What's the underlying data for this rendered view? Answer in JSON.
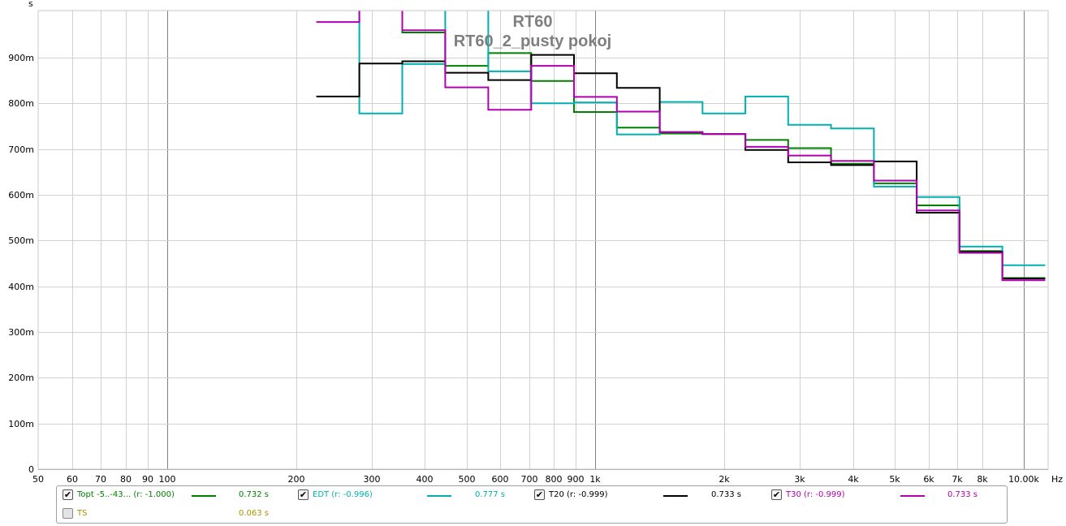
{
  "chart_data": {
    "type": "line",
    "title": "RT60",
    "subtitle": "RT60_2_pusty pokoj",
    "y_unit_label": "s",
    "x_unit_label": "Hz",
    "x_scale": "log",
    "xlim": [
      50,
      13000
    ],
    "ylim": [
      0,
      1.0
    ],
    "grid": true,
    "x_ticks": [
      {
        "v": 50,
        "label": "50"
      },
      {
        "v": 60,
        "label": "60"
      },
      {
        "v": 70,
        "label": "70"
      },
      {
        "v": 80,
        "label": "80"
      },
      {
        "v": 90,
        "label": "90"
      },
      {
        "v": 100,
        "label": "100"
      },
      {
        "v": 200,
        "label": "200"
      },
      {
        "v": 300,
        "label": "300"
      },
      {
        "v": 400,
        "label": "400"
      },
      {
        "v": 500,
        "label": "500"
      },
      {
        "v": 600,
        "label": "600"
      },
      {
        "v": 700,
        "label": "700"
      },
      {
        "v": 800,
        "label": "800"
      },
      {
        "v": 900,
        "label": "900"
      },
      {
        "v": 1000,
        "label": "1k"
      },
      {
        "v": 2000,
        "label": "2k"
      },
      {
        "v": 3000,
        "label": "3k"
      },
      {
        "v": 4000,
        "label": "4k"
      },
      {
        "v": 5000,
        "label": "5k"
      },
      {
        "v": 6000,
        "label": "6k"
      },
      {
        "v": 7000,
        "label": "7k"
      },
      {
        "v": 8000,
        "label": "8k"
      },
      {
        "v": 10000,
        "label": "10.00k"
      }
    ],
    "y_ticks": [
      {
        "v": 0,
        "label": "0"
      },
      {
        "v": 0.1,
        "label": "100m"
      },
      {
        "v": 0.2,
        "label": "200m"
      },
      {
        "v": 0.3,
        "label": "300m"
      },
      {
        "v": 0.4,
        "label": "400m"
      },
      {
        "v": 0.5,
        "label": "500m"
      },
      {
        "v": 0.6,
        "label": "600m"
      },
      {
        "v": 0.7,
        "label": "700m"
      },
      {
        "v": 0.8,
        "label": "800m"
      },
      {
        "v": 0.9,
        "label": "900m"
      }
    ],
    "band_edges": [
      223,
      281,
      354,
      446,
      562,
      708,
      891,
      1122,
      1413,
      1778,
      2239,
      2818,
      3548,
      4467,
      5623,
      7079,
      8913,
      11220
    ],
    "series": [
      {
        "name": "Topt",
        "color": "#008000",
        "values": [
          1.05,
          1.05,
          0.955,
          0.882,
          0.91,
          0.849,
          0.781,
          0.747,
          0.734,
          0.733,
          0.72,
          0.702,
          0.668,
          0.625,
          0.577,
          0.477,
          0.418
        ]
      },
      {
        "name": "EDT",
        "color": "#00b0b0",
        "values": [
          1.05,
          0.778,
          0.886,
          1.05,
          0.87,
          0.8,
          0.802,
          0.732,
          0.803,
          0.778,
          0.815,
          0.753,
          0.745,
          0.618,
          0.595,
          0.487,
          0.446
        ]
      },
      {
        "name": "T20",
        "color": "#000000",
        "values": [
          0.815,
          0.887,
          0.892,
          0.867,
          0.851,
          0.906,
          0.866,
          0.834,
          0.737,
          0.733,
          0.698,
          0.671,
          0.665,
          0.673,
          0.561,
          0.475,
          0.417
        ]
      },
      {
        "name": "T30",
        "color": "#b000b0",
        "values": [
          0.978,
          1.05,
          0.96,
          0.835,
          0.786,
          0.882,
          0.814,
          0.782,
          0.737,
          0.733,
          0.705,
          0.686,
          0.674,
          0.631,
          0.566,
          0.473,
          0.413
        ]
      }
    ]
  },
  "legend": {
    "items": [
      {
        "label": "Topt -5..-43... (r: -1.000)",
        "value": "0.732 s",
        "color": "#008000",
        "checked": true
      },
      {
        "label": "EDT (r: -0.996)",
        "value": "0.777 s",
        "color": "#00b0b0",
        "checked": true
      },
      {
        "label": "T20 (r: -0.999)",
        "value": "0.733 s",
        "color": "#000000",
        "checked": true
      },
      {
        "label": "T30 (r: -0.999)",
        "value": "0.733 s",
        "color": "#b000b0",
        "checked": true
      },
      {
        "label": "TS",
        "value": "0.063 s",
        "color": "#b09000",
        "checked": false
      }
    ]
  }
}
